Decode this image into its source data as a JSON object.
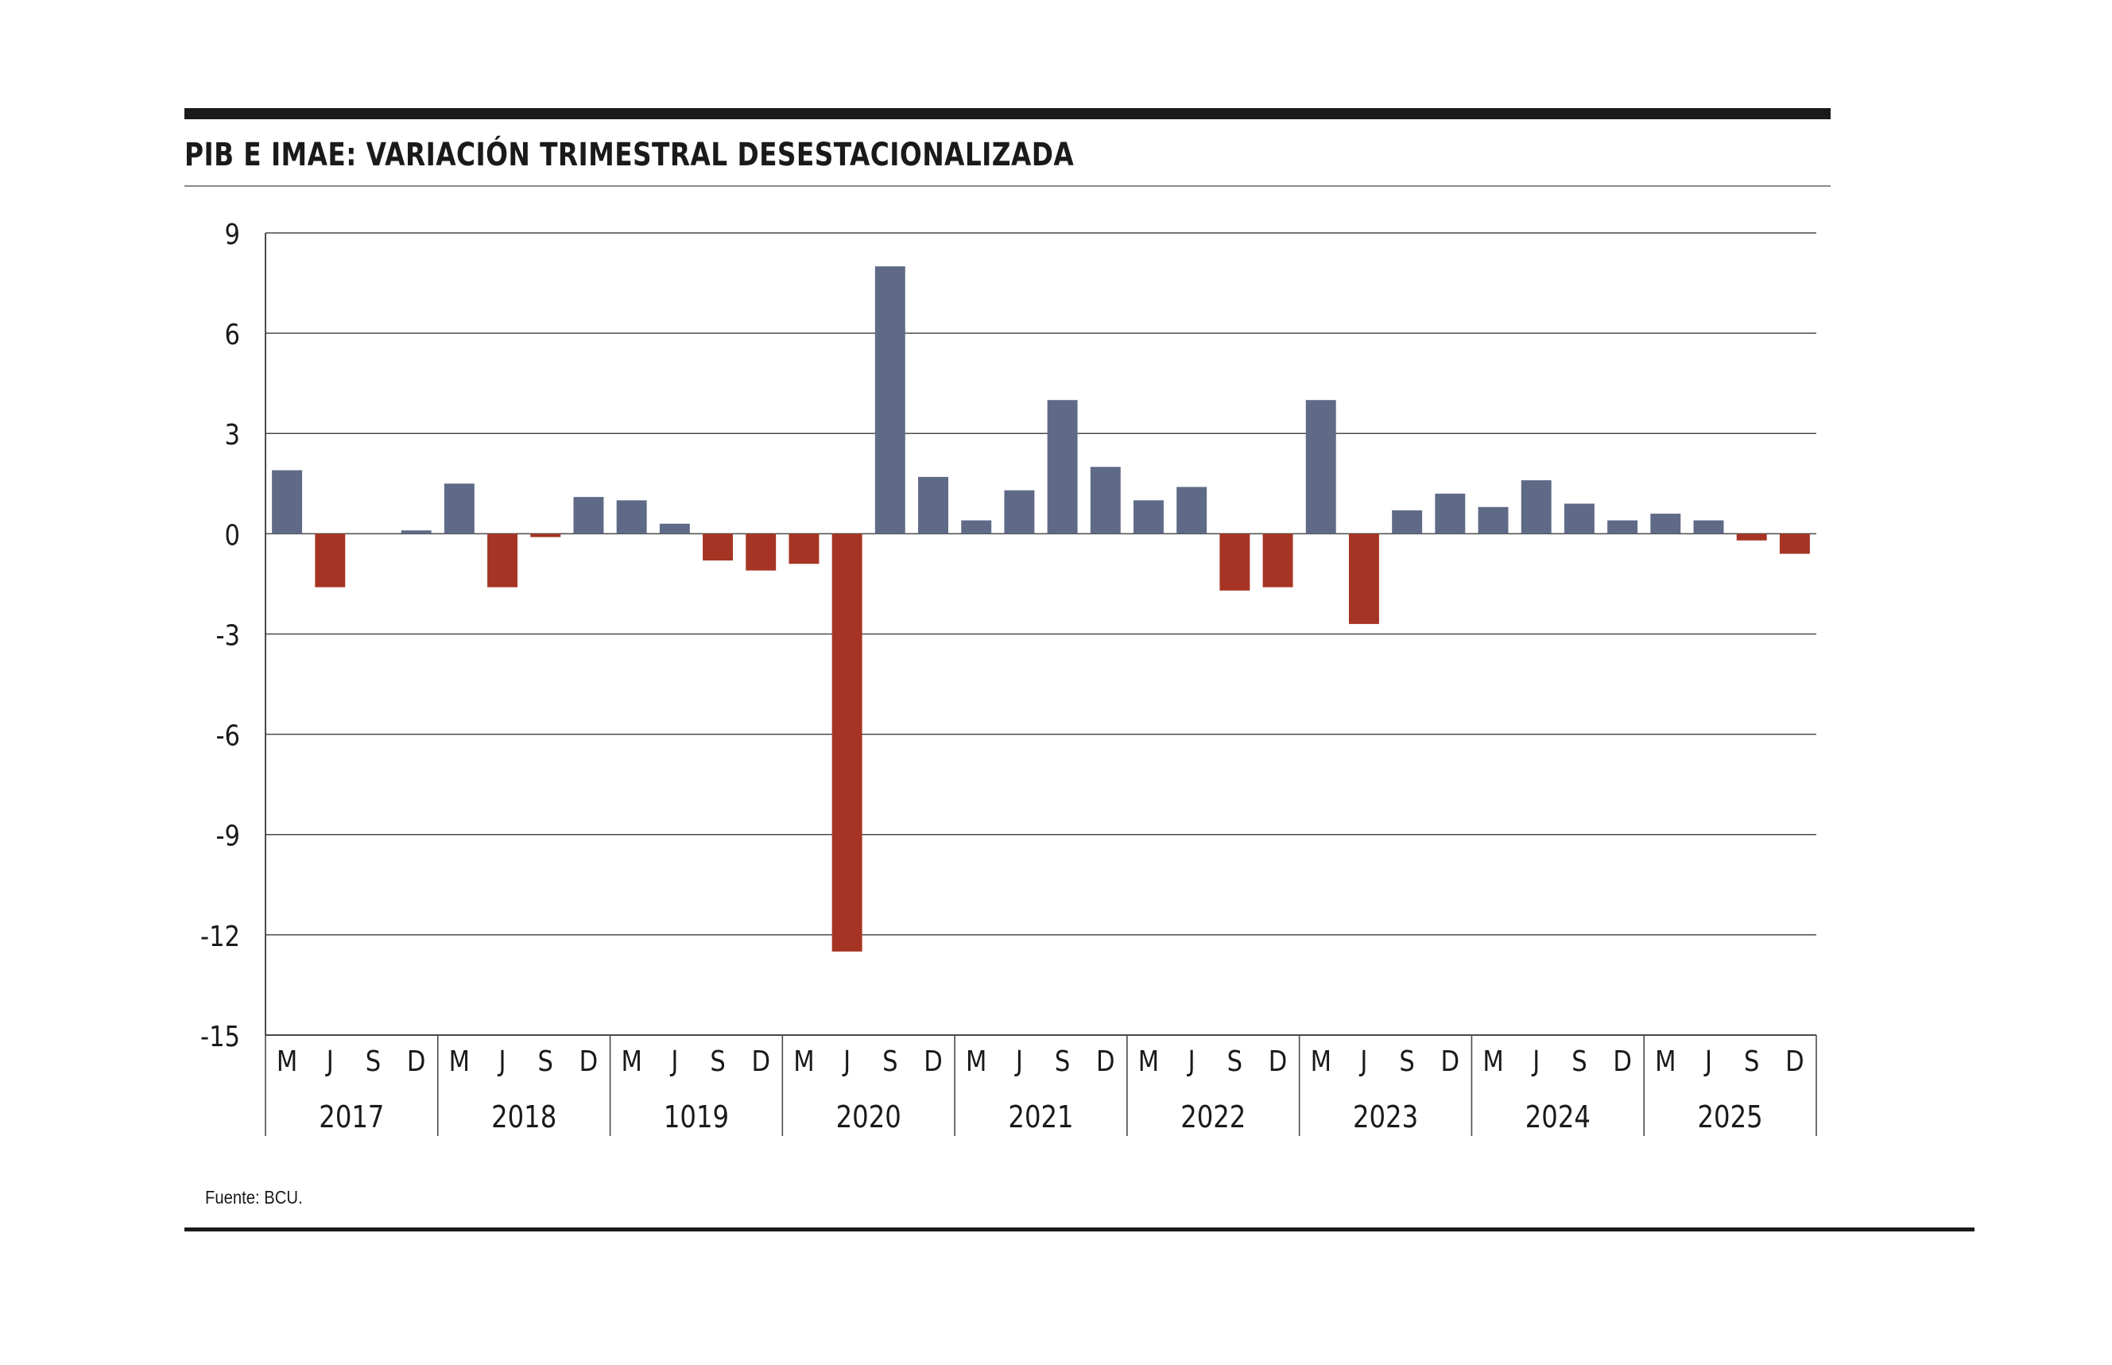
{
  "chart_data": {
    "type": "bar",
    "title": "PIB E IMAE: VARIACIÓN TRIMESTRAL DESESTACIONALIZADA",
    "xlabel": "",
    "ylabel": "",
    "ylim": [
      -15,
      9
    ],
    "yticks": [
      "9",
      "6",
      "3",
      "0",
      "-3",
      "-6",
      "-9",
      "-12",
      "-15"
    ],
    "ytick_values": [
      9,
      6,
      3,
      0,
      -3,
      -6,
      -9,
      -12,
      -15
    ],
    "grid": true,
    "quarter_labels": [
      "M",
      "J",
      "S",
      "D"
    ],
    "years": [
      "2017",
      "2018",
      "1019",
      "2020",
      "2021",
      "2022",
      "2023",
      "2024",
      "2025"
    ],
    "categories": [
      "M 2017",
      "J 2017",
      "S 2017",
      "D 2017",
      "M 2018",
      "J 2018",
      "S 2018",
      "D 2018",
      "M 1019",
      "J 1019",
      "S 1019",
      "D 1019",
      "M 2020",
      "J 2020",
      "S 2020",
      "D 2020",
      "M 2021",
      "J 2021",
      "S 2021",
      "D 2021",
      "M 2022",
      "J 2022",
      "S 2022",
      "D 2022",
      "M 2023",
      "J 2023",
      "S 2023",
      "D 2023",
      "M 2024",
      "J 2024",
      "S 2024",
      "D 2024",
      "M 2025",
      "J 2025",
      "S 2025",
      "D 2025"
    ],
    "values": [
      1.9,
      -1.6,
      0,
      0.1,
      1.5,
      -1.6,
      -0.1,
      1.1,
      1.0,
      0.3,
      -0.8,
      -1.1,
      -0.9,
      -12.5,
      8.0,
      1.7,
      0.4,
      1.3,
      4.0,
      2.0,
      1.0,
      1.4,
      -1.7,
      -1.6,
      4.0,
      -2.7,
      0.7,
      1.2,
      0.8,
      1.6,
      0.9,
      0.4,
      0.6,
      0.4,
      -0.2,
      -0.6
    ],
    "colors": {
      "positive": "#5f6a87",
      "negative": "#a63424",
      "grid": "#4a4a4a",
      "text": "#1a1a1a"
    }
  },
  "source": "Fuente: BCU."
}
